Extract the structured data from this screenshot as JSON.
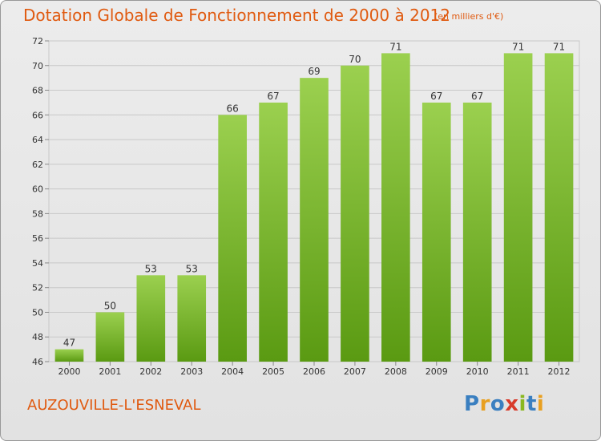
{
  "header": {
    "title": "Dotation Globale de Fonctionnement de 2000 à 2012",
    "subtitle": "(en milliers d'€)"
  },
  "footer": {
    "commune": "AUZOUVILLE-L'ESNEVAL",
    "logo_text": "Proxiti"
  },
  "colors": {
    "title": "#e05a10",
    "bar_top": "#9bd04f",
    "bar_bottom": "#5a9a12",
    "grid": "#c8c8c8",
    "axis_text": "#333333",
    "logo": [
      "#3a7fc0",
      "#e8a020",
      "#3a7fc0",
      "#d83a2a",
      "#8ab820",
      "#3a7fc0",
      "#e8a020"
    ]
  },
  "chart_data": {
    "type": "bar",
    "title": "Dotation Globale de Fonctionnement de 2000 à 2012",
    "subtitle": "(en milliers d'€)",
    "xlabel": "",
    "ylabel": "",
    "categories": [
      "2000",
      "2001",
      "2002",
      "2003",
      "2004",
      "2005",
      "2006",
      "2007",
      "2008",
      "2009",
      "2010",
      "2011",
      "2012"
    ],
    "values": [
      47,
      50,
      53,
      53,
      66,
      67,
      69,
      70,
      71,
      67,
      67,
      71,
      71
    ],
    "ylim": [
      46,
      72
    ],
    "yticks": [
      46,
      48,
      50,
      52,
      54,
      56,
      58,
      60,
      62,
      64,
      66,
      68,
      70,
      72
    ],
    "grid": true,
    "data_labels": true
  }
}
